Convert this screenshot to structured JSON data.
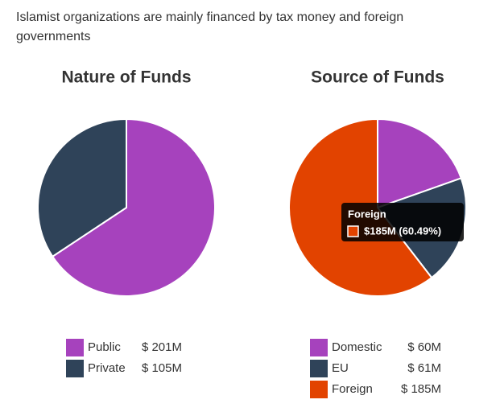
{
  "description": "Islamist organizations are mainly financed by tax money and foreign governments",
  "chart_data": [
    {
      "type": "pie",
      "title": "Nature of Funds",
      "categories": [
        "Public",
        "Private"
      ],
      "values": [
        201,
        105
      ],
      "value_labels": [
        "$ 201M",
        "$ 105M"
      ],
      "colors": [
        "#a642bd",
        "#2f4359"
      ]
    },
    {
      "type": "pie",
      "title": "Source of Funds",
      "categories": [
        "Domestic",
        "EU",
        "Foreign"
      ],
      "values": [
        60,
        61,
        185
      ],
      "value_labels": [
        "$ 60M",
        "$ 61M",
        "$ 185M"
      ],
      "colors": [
        "#a642bd",
        "#2f4359",
        "#e24300"
      ],
      "tooltip": {
        "title": "Foreign",
        "text": "$185M (60.49%)"
      }
    }
  ]
}
